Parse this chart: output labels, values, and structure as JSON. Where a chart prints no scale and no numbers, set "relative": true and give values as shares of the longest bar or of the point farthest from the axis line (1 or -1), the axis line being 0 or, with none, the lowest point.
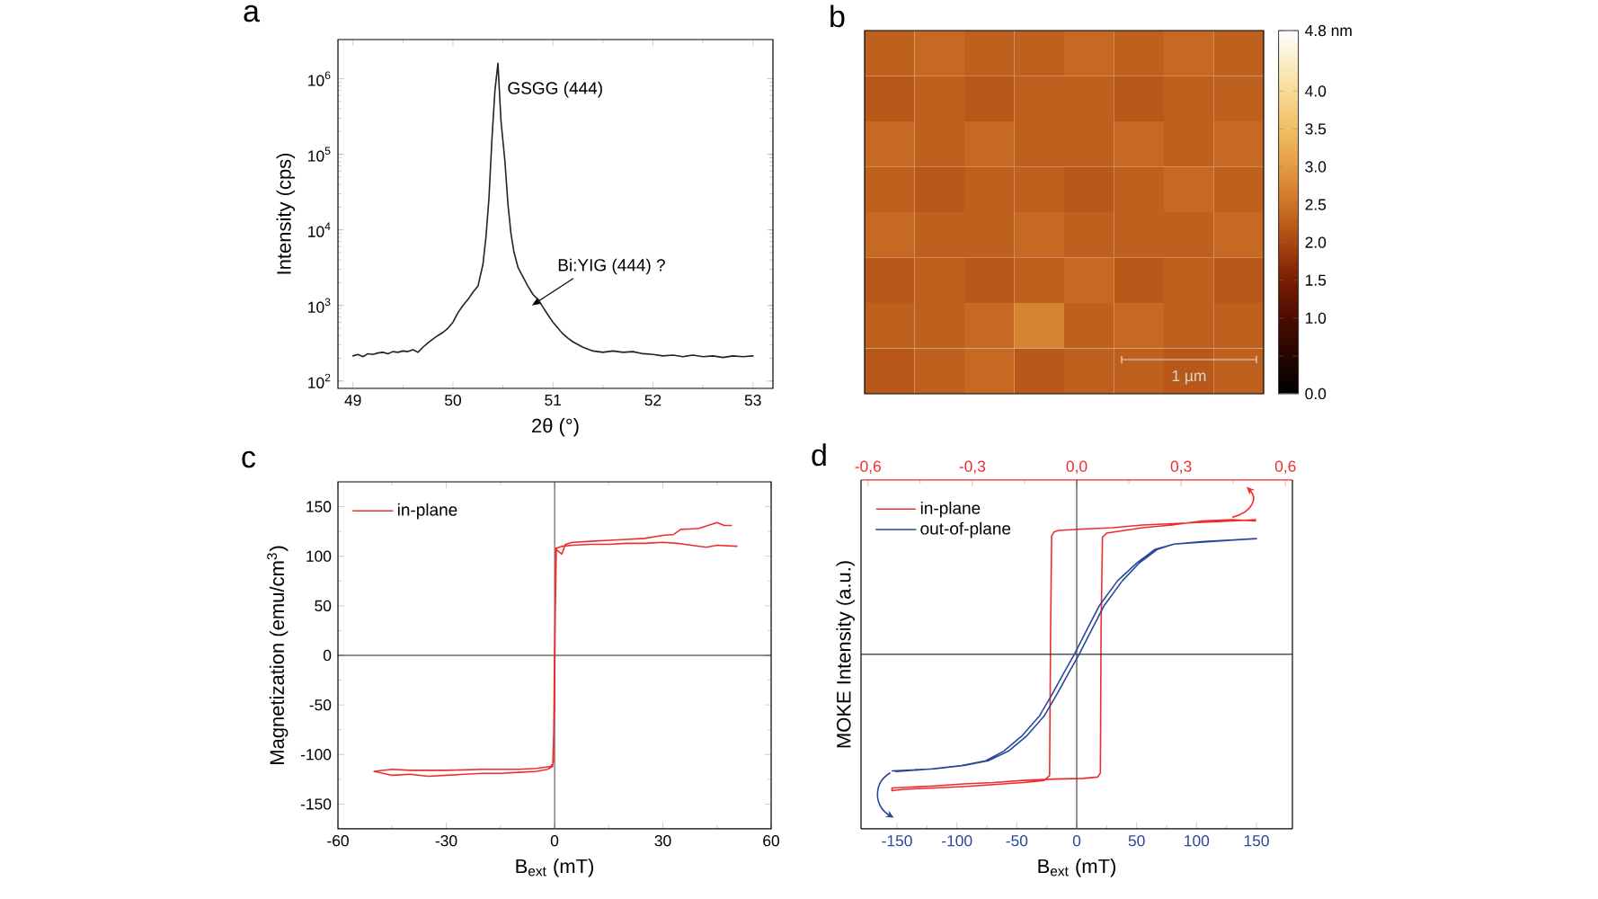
{
  "chart_data": [
    {
      "type": "line",
      "title": "a",
      "xlabel": "2θ (°)",
      "ylabel": "Intensity (cps)",
      "log": "y",
      "x": [
        49.0,
        49.05,
        49.1,
        49.15,
        49.2,
        49.25,
        49.3,
        49.35,
        49.4,
        49.45,
        49.5,
        49.55,
        49.6,
        49.65,
        49.7,
        49.75,
        49.8,
        49.85,
        49.9,
        49.95,
        50.0,
        50.05,
        50.1,
        50.15,
        50.2,
        50.25,
        50.3,
        50.33,
        50.36,
        50.39,
        50.42,
        50.45,
        50.48,
        50.52,
        50.55,
        50.58,
        50.61,
        50.65,
        50.7,
        50.75,
        50.8,
        50.85,
        50.9,
        50.95,
        51.0,
        51.05,
        51.1,
        51.15,
        51.2,
        51.3,
        51.4,
        51.5,
        51.6,
        51.7,
        51.8,
        51.9,
        52.0,
        52.1,
        52.2,
        52.3,
        52.4,
        52.5,
        52.6,
        52.7,
        52.8,
        52.9,
        53.0
      ],
      "series": [
        {
          "color": "#222222",
          "values": [
            215,
            225,
            210,
            230,
            225,
            235,
            240,
            230,
            245,
            240,
            250,
            245,
            260,
            240,
            280,
            320,
            360,
            400,
            440,
            500,
            600,
            800,
            1000,
            1200,
            1500,
            1800,
            3500,
            8000,
            26000,
            160000,
            700000,
            1600000,
            280000,
            80000,
            22000,
            9000,
            5100,
            3200,
            2400,
            1800,
            1400,
            1200,
            950,
            750,
            600,
            500,
            420,
            370,
            330,
            280,
            250,
            240,
            250,
            240,
            245,
            230,
            225,
            215,
            220,
            210,
            220,
            210,
            215,
            205,
            215,
            210,
            215
          ]
        }
      ],
      "xlim": [
        48.85,
        53.2
      ],
      "xticks": [
        49,
        50,
        51,
        52,
        53
      ],
      "ylim": [
        80,
        3300000
      ],
      "yticks": [
        {
          "value": 100,
          "label": "10$^{2}$"
        },
        {
          "value": 1000,
          "label": "10$^{3}$"
        },
        {
          "value": 10000,
          "label": "10$^{4}$"
        },
        {
          "value": 100000,
          "label": "10$^{5}$"
        },
        {
          "value": 1000000,
          "label": "10$^{6}$"
        }
      ],
      "annotations": [
        {
          "text": "GSGG (444)",
          "x": 50.45,
          "y": 1600000
        },
        {
          "text": "Bi:YIG (444) ?",
          "x": 50.79,
          "y": 1000
        }
      ]
    },
    {
      "type": "heatmap",
      "title": "b",
      "categories": [
        null,
        null,
        null,
        null,
        null,
        null,
        null,
        null
      ],
      "y_categories": [
        null,
        null,
        null,
        null,
        null,
        null,
        null,
        null
      ],
      "cells": [
        [
          2.3,
          2.4,
          2.3,
          2.3,
          2.4,
          2.3,
          2.4,
          2.3
        ],
        [
          2.2,
          2.3,
          2.2,
          2.3,
          2.3,
          2.2,
          2.3,
          2.3
        ],
        [
          2.4,
          2.3,
          2.4,
          2.3,
          2.3,
          2.4,
          2.3,
          2.4
        ],
        [
          2.3,
          2.2,
          2.3,
          2.3,
          2.2,
          2.3,
          2.4,
          2.3
        ],
        [
          2.4,
          2.3,
          2.3,
          2.4,
          2.3,
          2.3,
          2.3,
          2.4
        ],
        [
          2.2,
          2.3,
          2.2,
          2.3,
          2.4,
          2.2,
          2.3,
          2.2
        ],
        [
          2.3,
          2.3,
          2.4,
          2.7,
          2.3,
          2.4,
          2.3,
          2.3
        ],
        [
          2.2,
          2.3,
          2.4,
          2.2,
          2.3,
          2.3,
          2.2,
          2.3
        ]
      ],
      "clim": [
        0,
        4.8
      ],
      "cticks": [
        {
          "value": 0,
          "label": "0.0"
        },
        {
          "value": 0.5,
          "label": null
        },
        {
          "value": 1,
          "label": "1.0"
        },
        {
          "value": 1.5,
          "label": "1.5"
        },
        {
          "value": 2,
          "label": "2.0"
        },
        {
          "value": 2.5,
          "label": "2.5"
        },
        {
          "value": 3,
          "label": "3.0"
        },
        {
          "value": 3.5,
          "label": "3.5"
        },
        {
          "value": 4,
          "label": "4.0"
        },
        {
          "value": 4.8,
          "label": "4.8 nm"
        }
      ],
      "annotations": [
        "1 µm"
      ]
    },
    {
      "type": "line",
      "title": "c",
      "xlabel": "B$_{ext}$ (mT)",
      "ylabel": "Magnetization (emu/cm$^{3}$)",
      "x": [
        -50,
        -45,
        -40,
        -35,
        -30,
        -25,
        -20,
        -15,
        -10,
        -5,
        -2,
        -0.5,
        0,
        0.3,
        1,
        2,
        3,
        5,
        10,
        15,
        20,
        25,
        30,
        33,
        35,
        40,
        45,
        47,
        49,
        49.5,
        50.5,
        45,
        42,
        38,
        34,
        30,
        25,
        20,
        15,
        10,
        5,
        2,
        0.5,
        0,
        -0.3,
        -1,
        -5,
        -10,
        -20,
        -30,
        -40,
        -45,
        -50
      ],
      "series": [
        {
          "name": "in-plane",
          "color": "#ee2d2d",
          "values": [
            -117,
            -121,
            -120,
            -122,
            -121,
            -120,
            -119,
            -119,
            -118,
            -117,
            -115,
            -112,
            -50,
            108,
            105,
            102,
            112,
            114,
            115,
            116,
            117,
            118,
            121,
            122,
            127,
            128,
            134,
            131,
            131,
            null,
            110,
            111,
            109,
            111,
            113,
            114,
            113,
            113,
            112,
            112,
            111,
            110,
            108,
            0,
            -108,
            -112,
            -114,
            -115,
            -115,
            -116,
            -116,
            -115,
            -117
          ]
        }
      ],
      "xlim": [
        -60,
        60
      ],
      "xticks": [
        -60,
        -30,
        0,
        30,
        60
      ],
      "ylim": [
        -175,
        175
      ],
      "yticks": [
        -150,
        -100,
        -50,
        0,
        50,
        100,
        150
      ],
      "ref_lines": [
        {
          "axis": "x",
          "value": 0,
          "color": "#4a4a4a"
        },
        {
          "axis": "y",
          "value": 0,
          "color": "#1e1e1e"
        }
      ],
      "legend": "top left"
    },
    {
      "type": "line",
      "title": "d",
      "xlabel": "B$_{ext}$ (mT)",
      "ylabel": "MOKE Intensity (a.u.)",
      "relative": true,
      "tick_labels": "x",
      "series": [
        {
          "name": "in-plane",
          "color": "#ee2d2d",
          "axis": "x2",
          "x": [
            0.514,
            0.446,
            0.36,
            0.274,
            0.189,
            0.103,
            0.017,
            -0.051,
            -0.065,
            -0.072,
            -0.075,
            -0.078,
            -0.094,
            -0.154,
            -0.24,
            -0.326,
            -0.41,
            -0.497,
            -0.531,
            -0.531,
            -0.41,
            -0.326,
            -0.24,
            -0.154,
            -0.069,
            0.017,
            0.06,
            0.068,
            0.07,
            0.074,
            0.086,
            0.189,
            0.274,
            0.36,
            0.446,
            0.514
          ],
          "values": [
            0.99,
            0.98,
            0.97,
            0.96,
            0.95,
            0.93,
            0.92,
            0.91,
            0.9,
            0.87,
            0.19,
            -0.89,
            -0.925,
            -0.94,
            -0.955,
            -0.97,
            -0.98,
            -0.99,
            -1.0,
            -0.98,
            -0.965,
            -0.95,
            -0.94,
            -0.925,
            -0.915,
            -0.91,
            -0.9,
            -0.87,
            0.19,
            0.86,
            0.89,
            0.93,
            0.95,
            0.98,
            0.99,
            0.98
          ]
        },
        {
          "name": "out-of-plane",
          "color": "#2a4899",
          "x": [
            -154,
            -119,
            -94,
            -74,
            -57,
            -42,
            -27,
            -17,
            -7,
            2,
            13,
            23,
            38,
            52,
            67,
            81,
            106,
            131,
            150,
            150,
            131,
            106,
            81,
            65,
            50,
            34,
            19,
            9,
            -2,
            -11,
            -21,
            -31,
            -46,
            -61,
            -76,
            -96,
            -121,
            -151
          ],
          "values": [
            -0.855,
            -0.84,
            -0.815,
            -0.78,
            -0.71,
            -0.6,
            -0.45,
            -0.3,
            -0.14,
            0,
            0.19,
            0.36,
            0.54,
            0.67,
            0.77,
            0.81,
            0.83,
            0.84,
            0.85,
            0.85,
            0.84,
            0.825,
            0.81,
            0.77,
            0.67,
            0.54,
            0.36,
            0.19,
            0,
            -0.14,
            -0.3,
            -0.45,
            -0.6,
            -0.71,
            -0.78,
            -0.815,
            -0.84,
            -0.86
          ]
        }
      ],
      "xlim": [
        -180,
        180
      ],
      "xticks": [
        -150,
        -100,
        -50,
        0,
        50,
        100,
        150
      ],
      "x2lim": [
        -0.62,
        0.62
      ],
      "x2ticks": [
        {
          "value": -0.6,
          "label": "-0,6"
        },
        {
          "value": -0.3,
          "label": "-0,3"
        },
        {
          "value": 0,
          "label": "0,0"
        },
        {
          "value": 0.3,
          "label": "0,3"
        },
        {
          "value": 0.6,
          "label": "0,6"
        }
      ],
      "ref_lines": [
        {
          "axis": "x",
          "value": 0,
          "color": "#4a4a4a"
        },
        {
          "axis": "y",
          "value": 0,
          "color": "#1e1e1e"
        }
      ],
      "legend": "top left"
    }
  ]
}
